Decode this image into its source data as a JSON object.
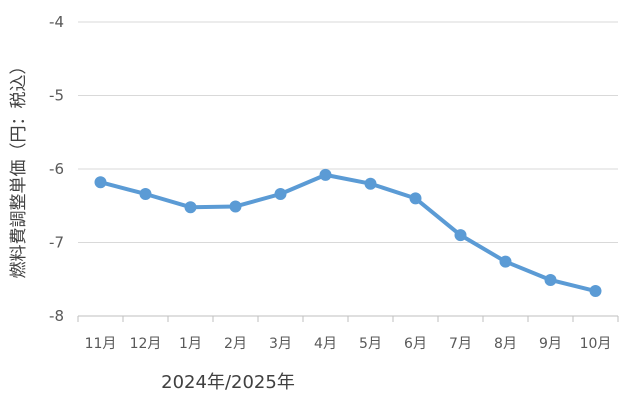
{
  "chart_data": {
    "type": "line",
    "title": "",
    "ylabel": "燃料費調整単価（円：税込）",
    "xlabel": "2024年/2025年",
    "categories": [
      "11月",
      "12月",
      "1月",
      "2月",
      "3月",
      "4月",
      "5月",
      "6月",
      "7月",
      "8月",
      "9月",
      "10月"
    ],
    "series": [
      {
        "values": [
          -6.18,
          -6.34,
          -6.52,
          -6.51,
          -6.34,
          -6.08,
          -6.2,
          -6.4,
          -6.9,
          -7.26,
          -7.51,
          -7.66
        ]
      }
    ],
    "ylim": [
      -8,
      -4
    ],
    "yticks": [
      "-4",
      "-5",
      "-6",
      "-7",
      "-8"
    ],
    "grid": true,
    "legend": "none",
    "colors": {
      "line": "#5b9bd5",
      "grid": "#d9d9d9",
      "axis": "#bfbfbf"
    }
  }
}
